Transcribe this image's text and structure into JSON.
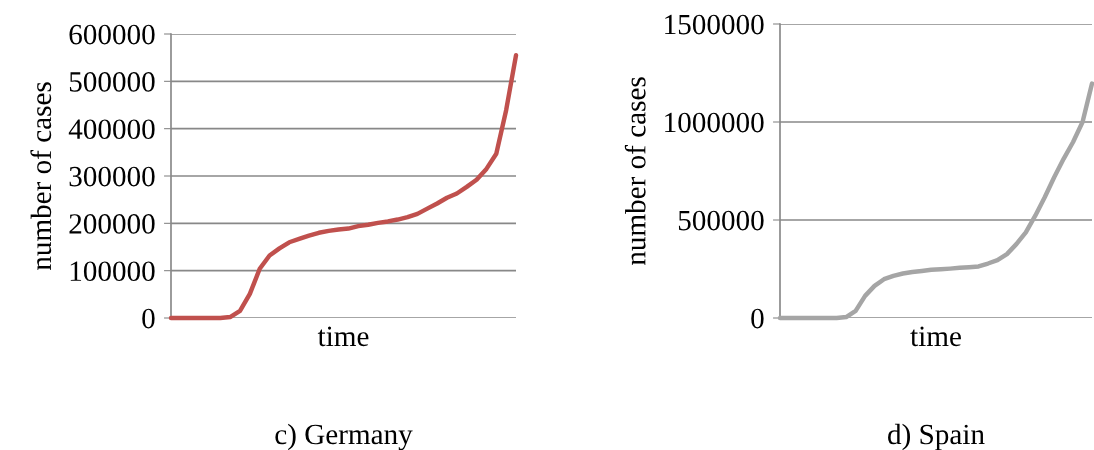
{
  "chart_data": [
    {
      "type": "line",
      "title": "c) Germany",
      "xlabel": "time",
      "ylabel": "number of cases",
      "categories": [
        null,
        null,
        null,
        null,
        null,
        null,
        null,
        null,
        null,
        null,
        null,
        null,
        null,
        null,
        null,
        null,
        null,
        null,
        null,
        null,
        null,
        null,
        null,
        null,
        null,
        null,
        null,
        null,
        null,
        null,
        null,
        null,
        null,
        null,
        null,
        null
      ],
      "series": [
        {
          "color": "#c0504d",
          "values": [
            0,
            0,
            0,
            0,
            0,
            0,
            2000,
            15000,
            51000,
            104000,
            132000,
            147000,
            160000,
            167000,
            174000,
            180000,
            184000,
            187000,
            189000,
            194000,
            197000,
            201000,
            204000,
            208000,
            213000,
            220000,
            231000,
            242000,
            254000,
            263000,
            277000,
            292000,
            315000,
            347000,
            439000,
            555000
          ]
        }
      ],
      "ylim": [
        0,
        600000
      ],
      "yticks": [
        0,
        100000,
        200000,
        300000,
        400000,
        500000,
        600000
      ],
      "grid": "y",
      "marker": "none",
      "line_style": "solid",
      "tick_labels": "y"
    },
    {
      "type": "line",
      "title": "d) Spain",
      "xlabel": "time",
      "ylabel": "number of cases",
      "categories": [
        null,
        null,
        null,
        null,
        null,
        null,
        null,
        null,
        null,
        null,
        null,
        null,
        null,
        null,
        null,
        null,
        null,
        null,
        null,
        null,
        null,
        null,
        null,
        null,
        null,
        null,
        null,
        null,
        null,
        null,
        null,
        null,
        null,
        null
      ],
      "series": [
        {
          "color": "#a5a5a5",
          "values": [
            0,
            0,
            0,
            0,
            0,
            0,
            0,
            5000,
            36000,
            113000,
            164000,
            198000,
            215000,
            227000,
            235000,
            240000,
            246000,
            249000,
            252000,
            256000,
            259000,
            263000,
            278000,
            295000,
            326000,
            377000,
            437000,
            522000,
            616000,
            718000,
            812000,
            898000,
            1000000,
            1196000
          ]
        }
      ],
      "ylim": [
        0,
        1500000
      ],
      "yticks": [
        0,
        500000,
        1000000,
        1500000
      ],
      "grid": "y",
      "marker": "none",
      "line_style": "solid",
      "tick_labels": "y"
    }
  ]
}
